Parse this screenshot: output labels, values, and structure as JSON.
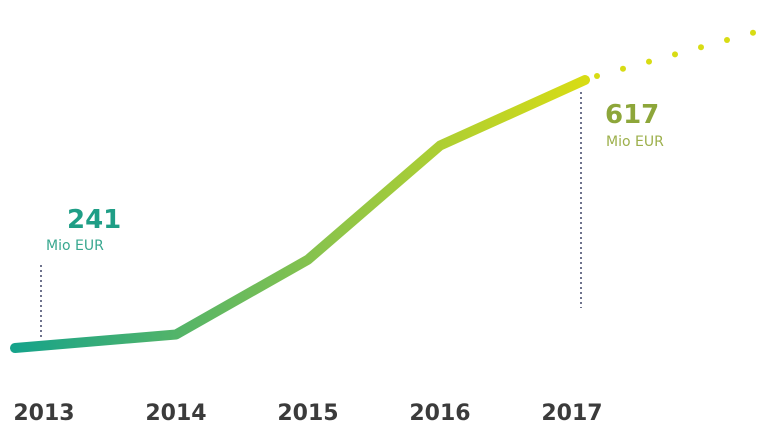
{
  "chart_data": {
    "type": "line",
    "categories": [
      "2013",
      "2014",
      "2015",
      "2016",
      "2017"
    ],
    "values": [
      241,
      260,
      365,
      525,
      617
    ],
    "projection": "dotted continuation beyond 2017",
    "title": "",
    "xlabel": "",
    "ylabel": "",
    "grid": false,
    "legend": "none",
    "annotations": [
      {
        "category": "2013",
        "value_label": "241",
        "unit_label": "Mio EUR"
      },
      {
        "category": "2017",
        "value_label": "617",
        "unit_label": "Mio EUR"
      }
    ],
    "colors": {
      "start": "#16a38a",
      "mid": "#8cc44a",
      "end": "#d8dc14",
      "tick_text": "#3b3b3b",
      "leader_line": "#4a5070"
    }
  }
}
